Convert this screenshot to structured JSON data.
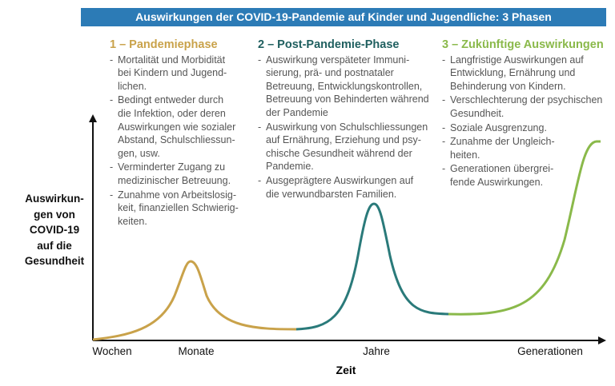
{
  "header": {
    "title": "Auswirkungen der COVID-19-Pandemie auf Kinder und Jugendliche: 3 Phasen"
  },
  "phases": [
    {
      "title": "1 – Pandemiephase",
      "bullets": [
        [
          "Mortalität und Morbidität",
          "bei Kindern und Jugend-",
          "lichen."
        ],
        [
          "Bedingt entweder durch",
          "die Infektion, oder deren",
          "Auswirkungen wie sozialer",
          "Abstand, Schulschliessun-",
          "gen, usw."
        ],
        [
          "Verminderter Zugang zu",
          "medizinischer Betreuung."
        ],
        [
          "Zunahme von Arbeitslosig-",
          "keit, finanziellen Schwierig-",
          "keiten."
        ]
      ]
    },
    {
      "title": "2 – Post-Pandemie-Phase",
      "bullets": [
        [
          "Auswirkung verspäteter Immuni-",
          "sierung, prä- und postnataler",
          "Betreuung, Entwicklungskontrollen,",
          "Betreuung von Behinderten während",
          "der Pandemie"
        ],
        [
          "Auswirkung von Schulschliessungen",
          "auf Ernährung, Erziehung und psy-",
          "chische Gesundheit während der",
          "Pandemie."
        ],
        [
          "Ausgeprägtere Auswirkungen auf",
          "die verwundbarsten Familien."
        ]
      ]
    },
    {
      "title": "3 – Zukünftige Auswirkungen",
      "bullets": [
        [
          "Langfristige Auswirkungen auf",
          "Entwicklung, Ernährung und",
          "Behinderung von Kindern."
        ],
        [
          "Verschlechterung der psychischen",
          "Gesundheit."
        ],
        [
          "Soziale Ausgrenzung."
        ],
        [
          "Zunahme der Ungleich-",
          "heiten."
        ],
        [
          "Generationen übergrei-",
          "fende Auswirkungen."
        ]
      ]
    }
  ],
  "y_axis": {
    "label": [
      "Auswirkun-",
      "gen von",
      "COVID-19",
      "auf die",
      "Gesundheit"
    ]
  },
  "x_axis": {
    "labels": [
      "Wochen",
      "Monate",
      "Jahre",
      "Generationen"
    ],
    "title": "Zeit"
  }
}
